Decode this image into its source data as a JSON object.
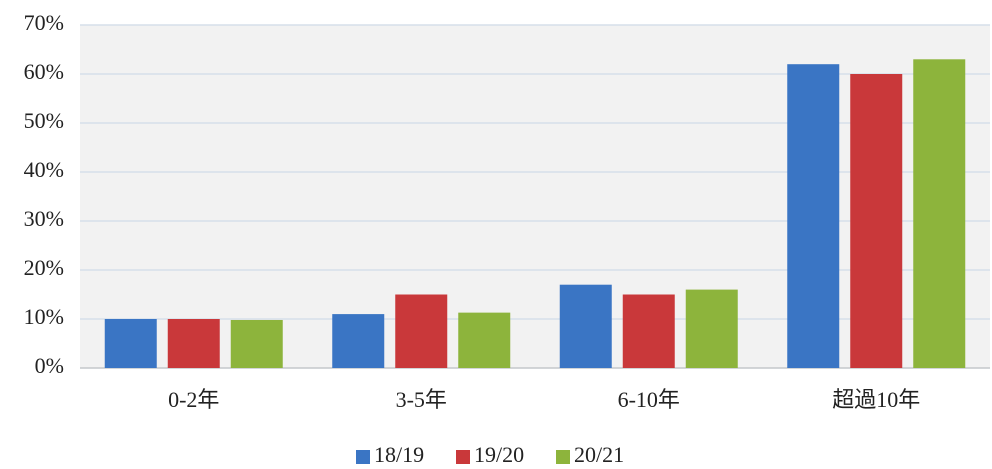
{
  "chart_data": {
    "type": "bar",
    "categories": [
      "0-2年",
      "3-5年",
      "6-10年",
      "超過10年"
    ],
    "series": [
      {
        "name": "18/19",
        "color": "#3a75c4",
        "values": [
          10,
          11,
          17,
          62
        ]
      },
      {
        "name": "19/20",
        "color": "#c9383a",
        "values": [
          10,
          15,
          15,
          60
        ]
      },
      {
        "name": "20/21",
        "color": "#8db43c",
        "values": [
          9.8,
          11.3,
          16,
          63
        ]
      }
    ],
    "ylim": [
      0,
      70
    ],
    "yticks": [
      {
        "value": 0,
        "label": "0%"
      },
      {
        "value": 10,
        "label": "10%"
      },
      {
        "value": 20,
        "label": "20%"
      },
      {
        "value": 30,
        "label": "30%"
      },
      {
        "value": 40,
        "label": "40%"
      },
      {
        "value": 50,
        "label": "50%"
      },
      {
        "value": 60,
        "label": "60%"
      },
      {
        "value": 70,
        "label": "70%"
      }
    ],
    "grid": true,
    "legend": "bottom"
  }
}
